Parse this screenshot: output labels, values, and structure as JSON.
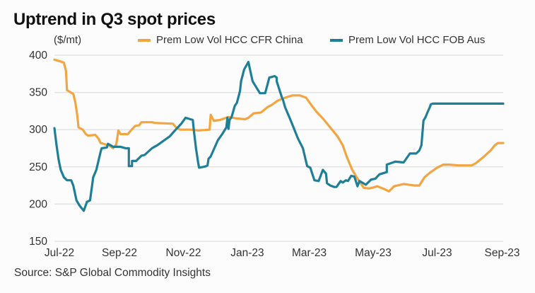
{
  "chart_data": {
    "type": "line",
    "title": "Uptrend in Q3 spot prices",
    "ylabel": "($/mt)",
    "xlabel": "",
    "ylim": [
      150,
      400
    ],
    "yticks": [
      150,
      200,
      250,
      300,
      350,
      400
    ],
    "grid": true,
    "legend_position": "top",
    "x_origin": "2022-07-01",
    "x_unit": "days since x_origin",
    "xlim": [
      0,
      428
    ],
    "xticks": [
      {
        "label": "Jul-22",
        "day": 0
      },
      {
        "label": "Sep-22",
        "day": 62
      },
      {
        "label": "Nov-22",
        "day": 123
      },
      {
        "label": "Jan-23",
        "day": 184
      },
      {
        "label": "Mar-23",
        "day": 243
      },
      {
        "label": "May-23",
        "day": 304
      },
      {
        "label": "Jul-23",
        "day": 365
      },
      {
        "label": "Sep-23",
        "day": 427
      }
    ],
    "series": [
      {
        "name": "Prem Low Vol HCC CFR China",
        "color": "#F2A541",
        "x": [
          0,
          5,
          9,
          11,
          12,
          18,
          20,
          22,
          23,
          27,
          30,
          32,
          39,
          42,
          44,
          47,
          53,
          56,
          59,
          61,
          63,
          70,
          73,
          77,
          81,
          83,
          93,
          96,
          113,
          116,
          120,
          130,
          137,
          148,
          149,
          152,
          158,
          166,
          174,
          182,
          185,
          190,
          197,
          203,
          207,
          213,
          220,
          227,
          234,
          240,
          245,
          250,
          256,
          263,
          270,
          275,
          279,
          284,
          290,
          295,
          300,
          303,
          308,
          315,
          319,
          324,
          333,
          343,
          348,
          353,
          358,
          365,
          371,
          377,
          385,
          398,
          402,
          409,
          416,
          420,
          423,
          428
        ],
        "values": [
          394,
          392,
          390,
          379,
          353,
          348,
          336,
          317,
          303,
          300,
          294,
          292,
          293,
          288,
          282,
          281,
          278,
          275,
          280,
          299,
          294,
          294,
          299,
          305,
          306,
          310,
          310,
          309,
          308,
          303,
          300,
          300,
          299,
          300,
          320,
          312,
          313,
          317,
          315,
          314,
          316,
          322,
          323,
          330,
          333,
          339,
          343,
          346,
          346,
          343,
          333,
          324,
          315,
          303,
          291,
          279,
          263,
          246,
          232,
          222,
          221,
          222,
          224,
          220,
          217,
          224,
          227,
          225,
          225,
          236,
          242,
          249,
          253,
          253,
          252,
          252,
          255,
          263,
          272,
          279,
          282,
          282
        ]
      },
      {
        "name": "Prem Low Vol HCC FOB Aus",
        "color": "#1F7F97",
        "x": [
          0,
          2,
          4,
          6,
          9,
          12,
          16,
          18,
          21,
          24,
          28,
          31,
          34,
          37,
          40,
          44,
          45,
          50,
          51,
          56,
          63,
          68,
          71,
          71,
          74,
          74,
          78,
          83,
          86,
          93,
          98,
          110,
          115,
          121,
          125,
          132,
          133,
          135,
          137,
          138,
          142,
          145,
          146,
          147,
          149,
          156,
          160,
          164,
          165,
          166,
          167,
          169,
          172,
          174,
          177,
          178,
          181,
          185,
          186,
          189,
          196,
          201,
          205,
          210,
          212,
          212,
          217,
          218,
          220,
          224,
          228,
          232,
          237,
          239,
          241,
          244,
          248,
          252,
          256,
          259,
          260,
          263,
          267,
          269,
          273,
          275,
          278,
          280,
          283,
          286,
          287,
          289,
          291,
          291,
          297,
          302,
          306,
          310,
          317,
          317,
          325,
          333,
          339,
          345,
          348,
          350,
          352,
          354,
          356,
          358,
          359,
          361,
          364,
          368,
          373,
          379,
          386,
          395,
          401,
          404,
          405,
          407,
          410,
          415,
          420,
          423,
          428
        ],
        "values": [
          302,
          279,
          260,
          246,
          236,
          232,
          232,
          225,
          205,
          198,
          191,
          203,
          205,
          236,
          246,
          270,
          275,
          276,
          281,
          277,
          277,
          275,
          275,
          251,
          251,
          258,
          258,
          265,
          266,
          275,
          279,
          291,
          299,
          308,
          316,
          313,
          299,
          275,
          256,
          249,
          250,
          251,
          252,
          261,
          264,
          286,
          294,
          303,
          316,
          301,
          313,
          317,
          332,
          336,
          352,
          365,
          381,
          391,
          384,
          365,
          349,
          349,
          370,
          372,
          370,
          365,
          343,
          340,
          330,
          317,
          303,
          289,
          275,
          263,
          251,
          249,
          232,
          231,
          246,
          241,
          228,
          225,
          223,
          223,
          231,
          229,
          232,
          231,
          238,
          237,
          233,
          224,
          231,
          231,
          226,
          233,
          234,
          240,
          243,
          253,
          257,
          256,
          268,
          268,
          272,
          279,
          312,
          317,
          324,
          330,
          334,
          335,
          335,
          335,
          335,
          335,
          335,
          335,
          335,
          335,
          335,
          335,
          335,
          335,
          335,
          335,
          335
        ]
      }
    ]
  },
  "header": {
    "title": "Uptrend in Q3 spot prices",
    "unit": "($/mt)"
  },
  "legend": [
    {
      "label": "Prem Low Vol HCC CFR China",
      "color": "#F2A541"
    },
    {
      "label": "Prem Low Vol HCC FOB Aus",
      "color": "#1F7F97"
    }
  ],
  "footer": {
    "source": "Source: S&P Global Commodity Insights"
  }
}
